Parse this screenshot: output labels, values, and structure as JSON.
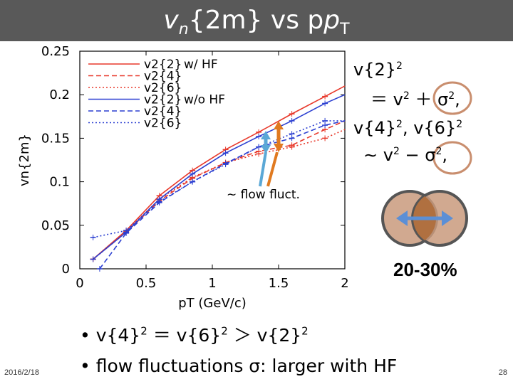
{
  "slide": {
    "title_main": "v",
    "title_sub": "n",
    "title_rest": "{2m} vs p",
    "title_sub2": "T",
    "eq1_a": "v{2}",
    "eq1_b": "＝ v",
    "eq1_c": "＋ σ",
    "eq2_a": "v{4}",
    "eq2_b": ", v{6}",
    "eq2_c": "∼ v",
    "eq2_d": "− σ",
    "sup2": "2",
    "comma": ",",
    "flow_label": "∼ flow fluct.",
    "centrality": "20-30%",
    "bullet1_a": "v{4}",
    "bullet1_b": "＝ v{6}",
    "bullet1_c": "＞ v{2}",
    "bullet2": "flow fluctuations σ: larger with HF",
    "bullet_mark": "•",
    "date": "2016/2/18",
    "page": "28"
  },
  "colors": {
    "with_hf": "#e8382a",
    "without_hf": "#2b3fd1",
    "titlebar": "#595959",
    "arrow_orange": "#e07a20",
    "arrow_blue": "#5ba8d6",
    "circle": "#c98e6e"
  },
  "chart_data": {
    "type": "line",
    "title": "",
    "xlabel": "pT (GeV/c)",
    "ylabel": "vn{2m}",
    "xlim": [
      0,
      2
    ],
    "ylim": [
      0,
      0.25
    ],
    "xticks": [
      "0",
      "0.5",
      "1",
      "1.5",
      "2"
    ],
    "yticks": [
      "0",
      "0.05",
      "0.1",
      "0.15",
      "0.2",
      "0.25"
    ],
    "legend_position": "top-left",
    "legend_group_labels": [
      "w/  HF",
      "w/o HF"
    ],
    "series": [
      {
        "name": "v2{2}",
        "group": "w/ HF",
        "color": "#e8382a",
        "dash": "solid",
        "x": [
          0.1,
          0.35,
          0.6,
          0.85,
          1.1,
          1.35,
          1.6,
          1.85,
          2.0
        ],
        "y": [
          0.011,
          0.044,
          0.084,
          0.113,
          0.137,
          0.157,
          0.178,
          0.198,
          0.21
        ]
      },
      {
        "name": "v2{4}",
        "group": "w/ HF",
        "color": "#e8382a",
        "dash": "dash",
        "x": [
          0.1,
          0.35,
          0.6,
          0.85,
          1.1,
          1.35,
          1.6,
          1.85,
          2.0
        ],
        "y": [
          0.011,
          0.042,
          0.078,
          0.104,
          0.122,
          0.135,
          0.142,
          0.16,
          0.17
        ]
      },
      {
        "name": "v2{6}",
        "group": "w/ HF",
        "color": "#e8382a",
        "dash": "dot",
        "x": [
          0.1,
          0.35,
          0.6,
          0.85,
          1.1,
          1.35,
          1.6,
          1.85,
          2.0
        ],
        "y": [
          0.011,
          0.043,
          0.08,
          0.105,
          0.122,
          0.132,
          0.14,
          0.15,
          0.16
        ]
      },
      {
        "name": "v2{2}",
        "group": "w/o HF",
        "color": "#2b3fd1",
        "dash": "solid",
        "x": [
          0.1,
          0.35,
          0.6,
          0.85,
          1.1,
          1.35,
          1.6,
          1.85,
          2.0
        ],
        "y": [
          0.011,
          0.042,
          0.08,
          0.109,
          0.133,
          0.152,
          0.17,
          0.19,
          0.2
        ]
      },
      {
        "name": "v2{4}",
        "group": "w/o HF",
        "color": "#2b3fd1",
        "dash": "dash",
        "x": [
          0.15,
          0.35,
          0.6,
          0.85,
          1.1,
          1.35,
          1.6,
          1.85,
          2.0
        ],
        "y": [
          0.0,
          0.041,
          0.076,
          0.1,
          0.121,
          0.14,
          0.15,
          0.165,
          0.17
        ]
      },
      {
        "name": "v2{6}",
        "group": "w/o HF",
        "color": "#2b3fd1",
        "dash": "dot",
        "x": [
          0.1,
          0.35,
          0.6,
          0.85,
          1.1,
          1.35,
          1.6,
          1.85,
          2.0
        ],
        "y": [
          0.036,
          0.044,
          0.077,
          0.1,
          0.12,
          0.14,
          0.155,
          0.17,
          0.17
        ]
      }
    ]
  }
}
